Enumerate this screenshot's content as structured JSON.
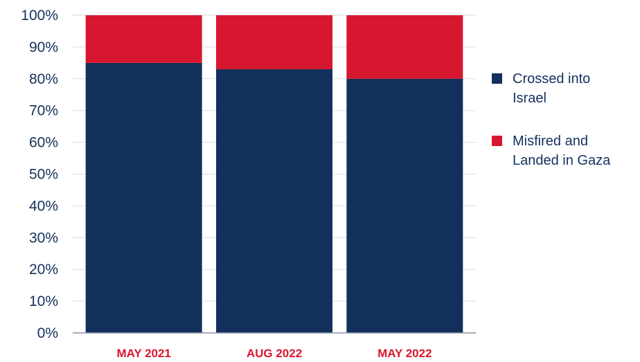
{
  "chart_data": {
    "type": "bar",
    "stacked": true,
    "categories": [
      "MAY 2021",
      "AUG 2022",
      "MAY 2022"
    ],
    "series": [
      {
        "name": "Crossed into Israel",
        "legend_lines": [
          "Crossed into",
          "Israel"
        ],
        "values": [
          85,
          83,
          80
        ],
        "color": "#13305c"
      },
      {
        "name": "Misfired and Landed in Gaza",
        "legend_lines": [
          "Misfired and",
          "Landed in Gaza"
        ],
        "values": [
          15,
          17,
          20
        ],
        "color": "#d7172f"
      }
    ],
    "ylim": [
      0,
      100
    ],
    "yticks": [
      "0%",
      "10%",
      "20%",
      "30%",
      "40%",
      "50%",
      "60%",
      "70%",
      "80%",
      "90%",
      "100%"
    ],
    "grid": true,
    "legend_position": "right",
    "category_label_color": "#d7172f",
    "tick_label_color": "#13305c",
    "grid_color": "#d6dbe2",
    "axis_color": "#8a93a3"
  }
}
